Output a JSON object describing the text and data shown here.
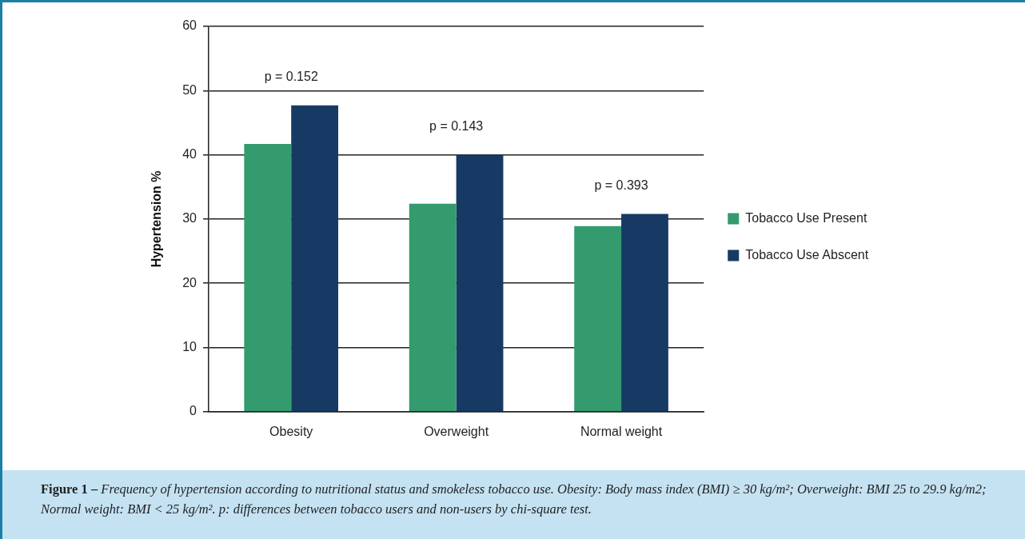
{
  "chart_data": {
    "type": "bar",
    "ylabel": "Hypertension %",
    "categories": [
      "Obesity",
      "Overweight",
      "Normal weight"
    ],
    "series": [
      {
        "name": "Tobacco Use Present",
        "color": "#339b6e",
        "values": [
          41.7,
          32.4,
          28.9
        ]
      },
      {
        "name": "Tobacco Use Abscent",
        "color": "#163a64",
        "values": [
          47.7,
          40,
          30.8
        ]
      }
    ],
    "ylim": [
      0,
      60
    ],
    "yticks": [
      0,
      10,
      20,
      30,
      40,
      50,
      60
    ],
    "grid": "y",
    "legend": "right",
    "annotations": [
      "p = 0.152",
      "p = 0.143",
      "p = 0.393",
      "Figure 1 –",
      "Frequency of hypertension according to nutritional status and smokeless tobacco use. Obesity: Body mass index (BMI) ≥ 30 kg/m²; Overweight: BMI 25 to 29.9 kg/m2; Normal weight: BMI < 25 kg/m². p: differences between tobacco users and non-users by chi-square test."
    ]
  }
}
